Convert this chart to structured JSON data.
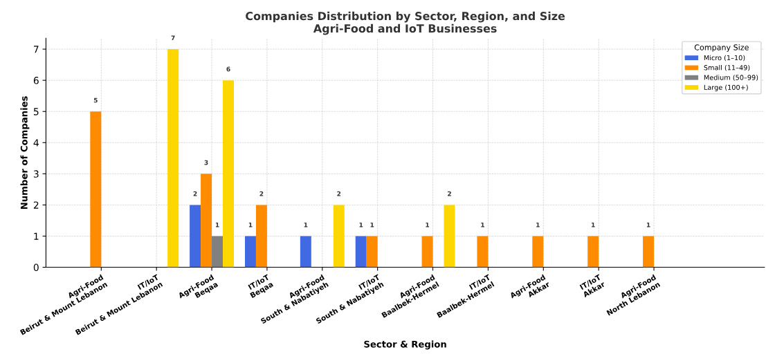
{
  "chart_data": {
    "type": "bar",
    "title": "Companies Distribution by Sector, Region, and Size",
    "subtitle": "Agri-Food and IoT Businesses",
    "xlabel": "Sector & Region",
    "ylabel": "Number of Companies",
    "legend_title": "Company Size",
    "categories": [
      "Agri-Food\nBeirut & Mount Lebanon",
      "IT/IoT\nBeirut & Mount Lebanon",
      "Agri-Food\nBeqaa",
      "IT/IoT\nBeqaa",
      "Agri-Food\nSouth & Nabatiyeh",
      "IT/IoT\nSouth & Nabatiyeh",
      "Agri-Food\nBaalbek-Hermel",
      "IT/IoT\nBaalbek-Hermel",
      "Agri-Food\nAkkar",
      "IT/IoT\nAkkar",
      "Agri-Food\nNorth Lebanon"
    ],
    "series": [
      {
        "name": "Micro (1–10)",
        "color": "#4169e1",
        "values": [
          null,
          null,
          2,
          1,
          1,
          1,
          null,
          null,
          null,
          null,
          null
        ]
      },
      {
        "name": "Small (11–49)",
        "color": "#ff8c00",
        "values": [
          5,
          null,
          3,
          2,
          null,
          1,
          1,
          1,
          1,
          1,
          1
        ]
      },
      {
        "name": "Medium (50–99)",
        "color": "#808080",
        "values": [
          null,
          null,
          1,
          null,
          null,
          null,
          null,
          null,
          null,
          null,
          null
        ]
      },
      {
        "name": "Large (100+)",
        "color": "#ffd700",
        "values": [
          null,
          7,
          6,
          null,
          2,
          null,
          2,
          null,
          null,
          null,
          null
        ]
      }
    ],
    "ylim": [
      0,
      7.35
    ],
    "yticks": [
      0,
      1,
      2,
      3,
      4,
      5,
      6,
      7
    ],
    "grid": true,
    "legend": "top right",
    "data_labels": true
  }
}
